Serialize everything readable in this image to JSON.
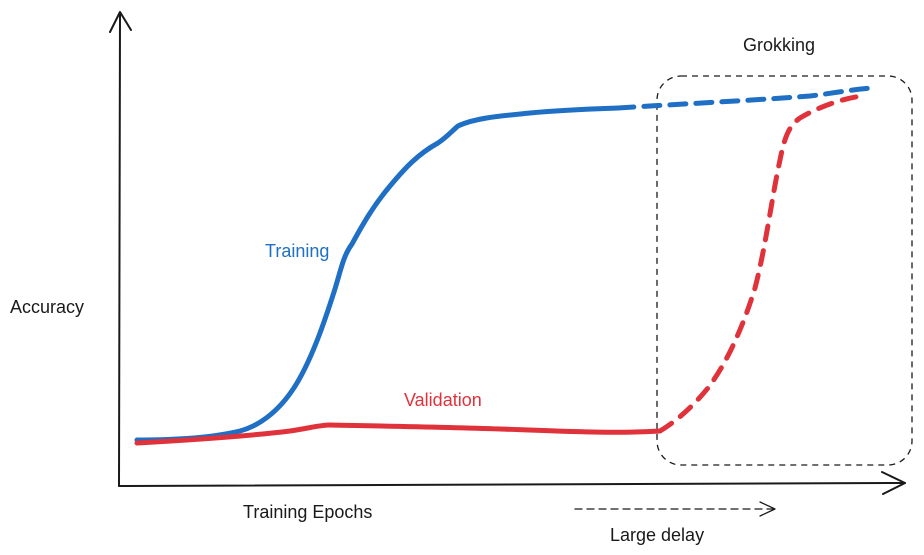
{
  "labels": {
    "y_axis": "Accuracy",
    "x_axis": "Training Epochs",
    "delay": "Large delay",
    "region": "Grokking",
    "training": "Training",
    "validation": "Validation"
  },
  "colors": {
    "training": "#1f6fc4",
    "validation": "#e0323a",
    "axes": "#1a1a1a",
    "text": "#1a1a1a"
  },
  "chart_data": {
    "type": "line",
    "xlabel": "Training Epochs",
    "ylabel": "Accuracy",
    "ticks": "none",
    "series": [
      {
        "name": "Training",
        "style": "solid then dashed",
        "trend": "rises sigmoidally early, plateaus near the top"
      },
      {
        "name": "Validation",
        "style": "solid then dashed",
        "trend": "stays flat near the bottom, then rises sharply inside the Grokking region"
      }
    ]
  }
}
